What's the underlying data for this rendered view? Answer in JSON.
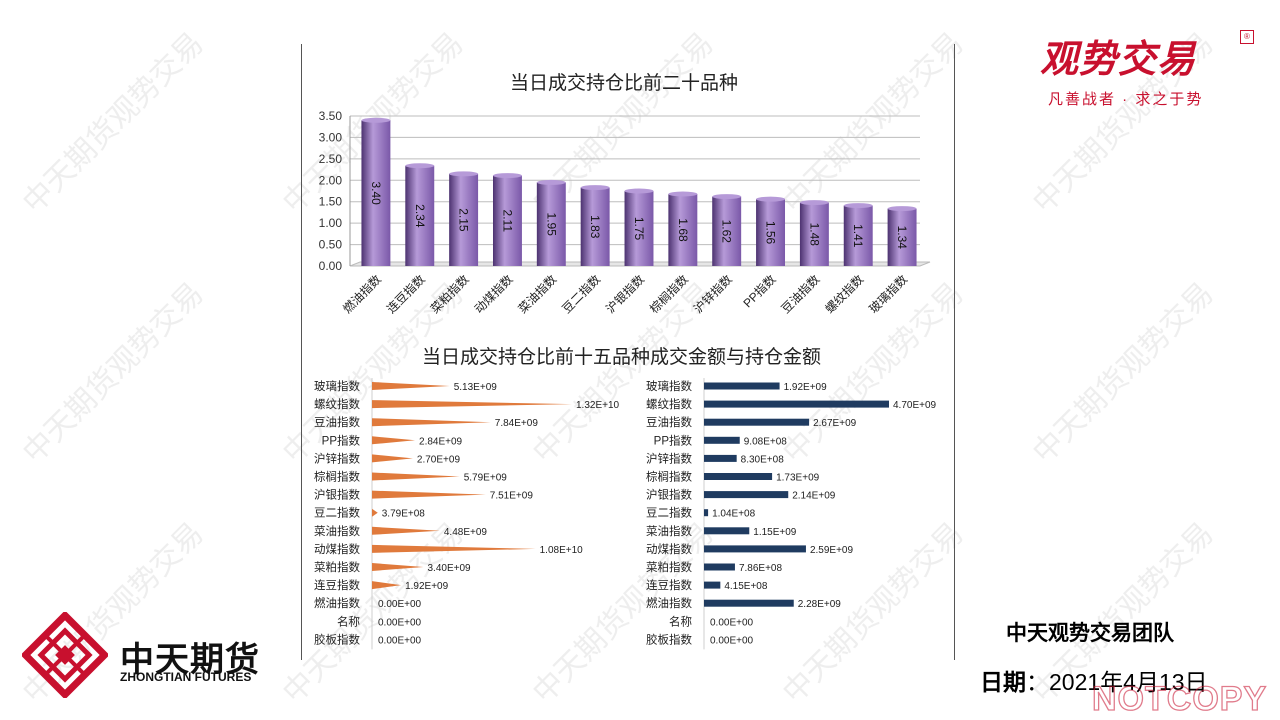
{
  "brand": {
    "top_logo_title": "观势交易",
    "top_logo_slogan": "凡善战者 · 求之于势",
    "top_logo_badge": "®",
    "company_cn": "中天期货",
    "company_en": "ZHONGTIAN FUTURES",
    "team": "中天观势交易团队",
    "date_label": "日期",
    "date_sep": "：",
    "date_value": "2021年4月13日",
    "watermark": "中天期货观势交易",
    "notcopy": "NOTCOPY"
  },
  "chart_data": [
    {
      "type": "bar",
      "title": "当日成交持仓比前二十品种",
      "categories": [
        "燃油指数",
        "连豆指数",
        "菜粕指数",
        "动煤指数",
        "菜油指数",
        "豆二指数",
        "沪银指数",
        "棕榈指数",
        "沪锌指数",
        "PP指数",
        "豆油指数",
        "螺纹指数",
        "玻璃指数"
      ],
      "values": [
        3.4,
        2.34,
        2.15,
        2.11,
        1.95,
        1.83,
        1.75,
        1.68,
        1.62,
        1.56,
        1.48,
        1.41,
        1.34
      ],
      "value_labels": [
        "3.40",
        "2.34",
        "2.15",
        "2.11",
        "1.95",
        "1.83",
        "1.75",
        "1.68",
        "1.62",
        "1.56",
        "1.48",
        "1.41",
        "1.34"
      ],
      "ylim": [
        0,
        3.5
      ],
      "yticks": [
        "0.00",
        "0.50",
        "1.00",
        "1.50",
        "2.00",
        "2.50",
        "3.00",
        "3.50"
      ],
      "grid": true,
      "colors": {
        "bar": "#7a58a8",
        "bar_light": "#b69ad8",
        "bar_dark": "#4c3270"
      }
    },
    {
      "type": "bar",
      "title": "当日成交持仓比前十五品种成交金额与持仓金额",
      "orientation": "horizontal",
      "categories": [
        "玻璃指数",
        "螺纹指数",
        "豆油指数",
        "PP指数",
        "沪锌指数",
        "棕榈指数",
        "沪银指数",
        "豆二指数",
        "菜油指数",
        "动煤指数",
        "菜粕指数",
        "连豆指数",
        "燃油指数",
        "名称",
        "胶板指数"
      ],
      "series": [
        {
          "values": [
            5130000000.0,
            13200000000.0,
            7840000000.0,
            2840000000.0,
            2700000000.0,
            5790000000.0,
            7510000000.0,
            379000000.0,
            4480000000.0,
            10800000000.0,
            3400000000.0,
            1920000000.0,
            0,
            0,
            0
          ],
          "value_labels": [
            "5.13E+09",
            "1.32E+10",
            "7.84E+09",
            "2.84E+09",
            "2.70E+09",
            "5.79E+09",
            "7.51E+09",
            "3.79E+08",
            "4.48E+09",
            "1.08E+10",
            "3.40E+09",
            "1.92E+09",
            "0.00E+00",
            "0.00E+00",
            "0.00E+00"
          ],
          "color": "#e07a3c"
        },
        {
          "values": [
            1920000000.0,
            4700000000.0,
            2670000000.0,
            908000000.0,
            830000000.0,
            1730000000.0,
            2140000000.0,
            104000000.0,
            1150000000.0,
            2590000000.0,
            786000000.0,
            415000000.0,
            2280000000.0,
            0,
            0
          ],
          "value_labels": [
            "1.92E+09",
            "4.70E+09",
            "2.67E+09",
            "9.08E+08",
            "8.30E+08",
            "1.73E+09",
            "2.14E+09",
            "1.04E+08",
            "1.15E+09",
            "2.59E+09",
            "7.86E+08",
            "4.15E+08",
            "2.28E+09",
            "0.00E+00",
            "0.00E+00"
          ],
          "color": "#1f3b60"
        }
      ]
    }
  ]
}
